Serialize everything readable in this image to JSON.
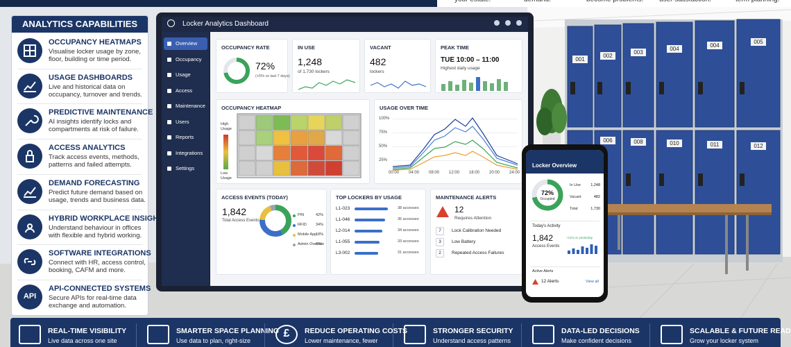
{
  "top_strip": [
    "your estate.",
    "demand.",
    "become problems.",
    "user satisfaction.",
    "term planning."
  ],
  "capabilities": {
    "title": "ANALYTICS CAPABILITIES",
    "api_icon": "API",
    "items": [
      {
        "title": "OCCUPANCY HEATMAPS",
        "desc": [
          "Visualise locker usage by zone,",
          "floor, building or time period."
        ]
      },
      {
        "title": "USAGE DASHBOARDS",
        "desc": [
          "Live and historical data on",
          "occupancy, turnover and trends."
        ]
      },
      {
        "title": "PREDICTIVE MAINTENANCE",
        "desc": [
          "AI insights identify locks and",
          "compartments at risk of failure."
        ]
      },
      {
        "title": "ACCESS ANALYTICS",
        "desc": [
          "Track access events, methods,",
          "patterns and failed attempts."
        ]
      },
      {
        "title": "DEMAND FORECASTING",
        "desc": [
          "Predict future demand based on",
          "usage, trends and business data."
        ]
      },
      {
        "title": "HYBRID WORKPLACE INSIGHT",
        "desc": [
          "Understand behaviour in offices",
          "with flexible and hybrid working."
        ]
      },
      {
        "title": "SOFTWARE INTEGRATIONS",
        "desc": [
          "Connect with HR, access control,",
          "booking, CAFM and more."
        ]
      },
      {
        "title": "API-CONNECTED SYSTEMS",
        "desc": [
          "Secure APIs for real-time data",
          "exchange and automation."
        ]
      }
    ]
  },
  "dashboard": {
    "title": "Locker Analytics Dashboard",
    "nav": [
      "Overview",
      "Occupancy",
      "Usage",
      "Access",
      "Maintenance",
      "Users",
      "Reports",
      "Integrations",
      "Settings"
    ],
    "cards": [
      {
        "title": "OCCUPANCY RATE",
        "value": "72%",
        "note": "(+5% vs last 7 days)"
      },
      {
        "title": "IN USE",
        "value": "1,248",
        "note": "of 1,730 lockers"
      },
      {
        "title": "VACANT",
        "value": "482",
        "note": "lockers"
      },
      {
        "title": "PEAK TIME",
        "value": "TUE 10:00 – 11:00",
        "note": "Highest daily usage"
      }
    ],
    "heatmap": {
      "title": "OCCUPANCY HEATMAP",
      "high": [
        "High",
        "Usage"
      ],
      "low": [
        "Low",
        "Usage"
      ]
    },
    "usage": {
      "title": "USAGE OVER TIME",
      "yticks": [
        "100%",
        "75%",
        "50%",
        "25%"
      ],
      "xticks": [
        "00:00",
        "04:00",
        "08:00",
        "12:00",
        "16:00",
        "20:00",
        "24:00"
      ]
    },
    "access": {
      "title": "ACCESS EVENTS (TODAY)",
      "value": "1,842",
      "note": "Total Access Events",
      "methods": [
        {
          "name": "PIN",
          "share": "42%"
        },
        {
          "name": "RFID",
          "share": "34%"
        },
        {
          "name": "Mobile App",
          "share": "18%"
        },
        {
          "name": "Admin Override",
          "share": "6%"
        }
      ]
    },
    "top_lockers": {
      "title": "TOP LOCKERS BY USAGE",
      "rows": [
        {
          "id": "L1-023",
          "count": "38 accesses"
        },
        {
          "id": "L1-046",
          "count": "36 accesses"
        },
        {
          "id": "L2-014",
          "count": "34 accesses"
        },
        {
          "id": "L1-055",
          "count": "33 accesses"
        },
        {
          "id": "L3-002",
          "count": "31 accesses"
        }
      ]
    },
    "maintenance": {
      "title": "MAINTENANCE ALERTS",
      "value": "12",
      "note": "Requires Attention",
      "rows": [
        {
          "count": "7",
          "label": "Lock Calibration Needed"
        },
        {
          "count": "3",
          "label": "Low Battery"
        },
        {
          "count": "2",
          "label": "Repeated Access Failures"
        }
      ]
    }
  },
  "phone": {
    "title": "Locker Overview",
    "rate": "72%",
    "rate_label": "Occupied",
    "stats": [
      {
        "label": "In Use",
        "value": "1,248"
      },
      {
        "label": "Vacant",
        "value": "482"
      },
      {
        "label": "Total",
        "value": "1,730"
      }
    ],
    "activity_title": "Today's Activity",
    "activity_value": "1,842",
    "activity_label": "Access Events",
    "activity_change": "+12% vs yesterday",
    "alerts_title": "Active Alerts",
    "alerts_value": "12 Alerts",
    "view_all": "View all"
  },
  "lockers": {
    "top": [
      "001",
      "002",
      "003",
      "004",
      "004",
      "005"
    ],
    "bottom": [
      "006",
      "008",
      "010",
      "011",
      "012"
    ]
  },
  "benefits": [
    {
      "title": "REAL-TIME VISIBILITY",
      "desc": "Live data across one site"
    },
    {
      "title": "SMARTER SPACE PLANNING",
      "desc": "Use data to plan, right-size"
    },
    {
      "title": "REDUCE OPERATING COSTS",
      "desc": "Lower maintenance, fewer",
      "icon": "£"
    },
    {
      "title": "STRONGER SECURITY",
      "desc": "Understand access patterns"
    },
    {
      "title": "DATA-LED DECISIONS",
      "desc": "Make confident decisions"
    },
    {
      "title": "SCALABLE & FUTURE READY",
      "desc": "Grow your locker system"
    }
  ]
}
